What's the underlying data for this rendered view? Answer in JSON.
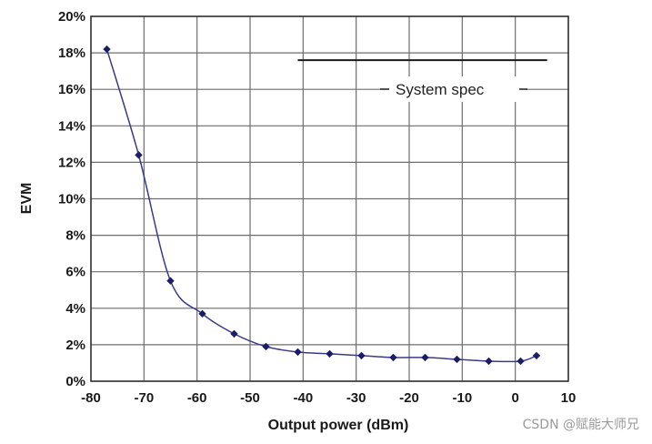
{
  "chart_data": {
    "type": "line",
    "xlabel": "Output power (dBm)",
    "ylabel": "EVM",
    "xlim": [
      -80,
      10
    ],
    "ylim": [
      0,
      20
    ],
    "x_ticks": [
      "-80",
      "-70",
      "-60",
      "-50",
      "-40",
      "-30",
      "-20",
      "-10",
      "0",
      "10"
    ],
    "y_ticks": [
      "0%",
      "2%",
      "4%",
      "6%",
      "8%",
      "10%",
      "12%",
      "14%",
      "16%",
      "18%",
      "20%"
    ],
    "grid": true,
    "series": [
      {
        "x": [
          -77,
          -71,
          -65,
          -59,
          -53,
          -47,
          -41,
          -35,
          -29,
          -23,
          -17,
          -11,
          -5,
          1,
          4
        ],
        "y": [
          18.2,
          12.4,
          5.5,
          3.7,
          2.6,
          1.9,
          1.6,
          1.5,
          1.4,
          1.3,
          1.3,
          1.2,
          1.1,
          1.1,
          1.4
        ],
        "color": "#3a3a8c"
      }
    ],
    "reference_line": {
      "label": "System spec",
      "x": [
        -41,
        6
      ],
      "y": 17.6,
      "color": "#1a1a1a"
    }
  },
  "watermark": "CSDN @赋能大师兄"
}
